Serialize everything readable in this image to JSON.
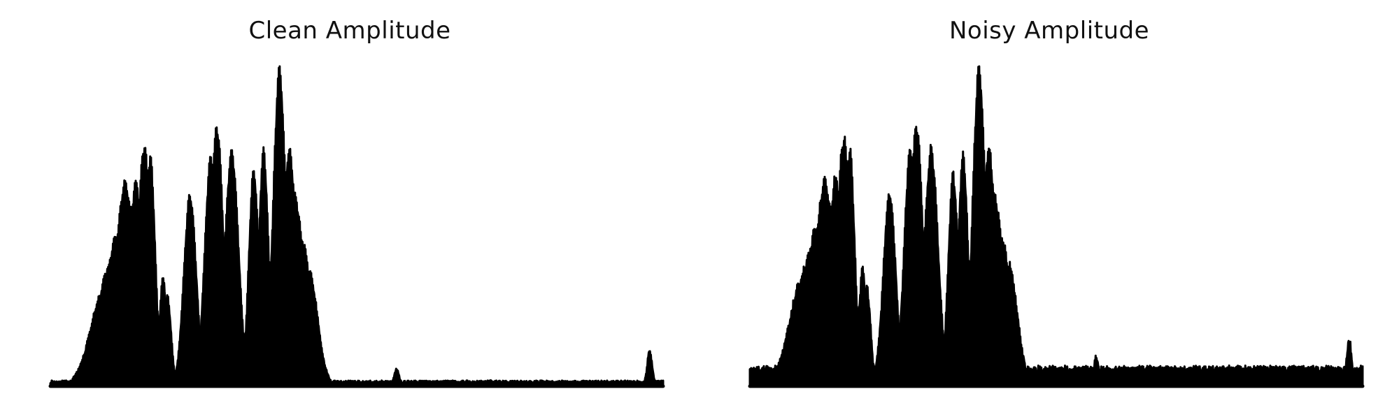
{
  "chart_data": [
    {
      "type": "area",
      "title": "Clean Amplitude",
      "xlabel": "",
      "ylabel": "",
      "axes_visible": false,
      "grid": false,
      "color": "#000000",
      "xlim": [
        0,
        1
      ],
      "ylim": [
        0,
        1
      ],
      "baseline": 0.01,
      "peaks": [
        [
          0.088,
          0.022,
          0.3
        ],
        [
          0.098,
          0.022,
          0.38
        ],
        [
          0.11,
          0.02,
          0.48
        ],
        [
          0.122,
          0.015,
          0.64
        ],
        [
          0.133,
          0.015,
          0.56
        ],
        [
          0.14,
          0.012,
          0.64
        ],
        [
          0.153,
          0.01,
          0.76
        ],
        [
          0.163,
          0.008,
          0.72
        ],
        [
          0.184,
          0.006,
          0.34
        ],
        [
          0.191,
          0.006,
          0.28
        ],
        [
          0.228,
          0.01,
          0.6
        ],
        [
          0.262,
          0.01,
          0.72
        ],
        [
          0.272,
          0.01,
          0.82
        ],
        [
          0.296,
          0.011,
          0.74
        ],
        [
          0.32,
          0.01,
          0.12
        ],
        [
          0.33,
          0.008,
          0.16
        ],
        [
          0.332,
          0.008,
          0.68
        ],
        [
          0.348,
          0.008,
          0.74
        ],
        [
          0.374,
          0.01,
          1.0
        ],
        [
          0.39,
          0.012,
          0.74
        ],
        [
          0.398,
          0.016,
          0.6
        ],
        [
          0.41,
          0.016,
          0.46
        ],
        [
          0.422,
          0.014,
          0.36
        ],
        [
          0.565,
          0.004,
          0.05
        ],
        [
          0.72,
          0.004,
          0.012
        ],
        [
          0.978,
          0.004,
          0.11
        ]
      ]
    },
    {
      "type": "area",
      "title": "Noisy Amplitude",
      "xlabel": "",
      "ylabel": "",
      "axes_visible": false,
      "grid": false,
      "color": "#000000",
      "xlim": [
        0,
        1
      ],
      "ylim": [
        0,
        1
      ],
      "baseline": 0.045,
      "peaks": [
        [
          0.088,
          0.022,
          0.34
        ],
        [
          0.098,
          0.022,
          0.4
        ],
        [
          0.11,
          0.02,
          0.5
        ],
        [
          0.122,
          0.015,
          0.64
        ],
        [
          0.133,
          0.015,
          0.56
        ],
        [
          0.14,
          0.012,
          0.65
        ],
        [
          0.153,
          0.01,
          0.78
        ],
        [
          0.163,
          0.008,
          0.74
        ],
        [
          0.184,
          0.006,
          0.36
        ],
        [
          0.191,
          0.006,
          0.3
        ],
        [
          0.228,
          0.01,
          0.6
        ],
        [
          0.262,
          0.01,
          0.74
        ],
        [
          0.272,
          0.01,
          0.82
        ],
        [
          0.296,
          0.011,
          0.74
        ],
        [
          0.32,
          0.01,
          0.16
        ],
        [
          0.33,
          0.008,
          0.18
        ],
        [
          0.332,
          0.008,
          0.66
        ],
        [
          0.348,
          0.008,
          0.72
        ],
        [
          0.374,
          0.01,
          1.0
        ],
        [
          0.39,
          0.012,
          0.74
        ],
        [
          0.398,
          0.016,
          0.6
        ],
        [
          0.41,
          0.016,
          0.46
        ],
        [
          0.422,
          0.014,
          0.38
        ],
        [
          0.565,
          0.004,
          0.08
        ],
        [
          0.72,
          0.004,
          0.04
        ],
        [
          0.978,
          0.004,
          0.14
        ]
      ]
    }
  ]
}
